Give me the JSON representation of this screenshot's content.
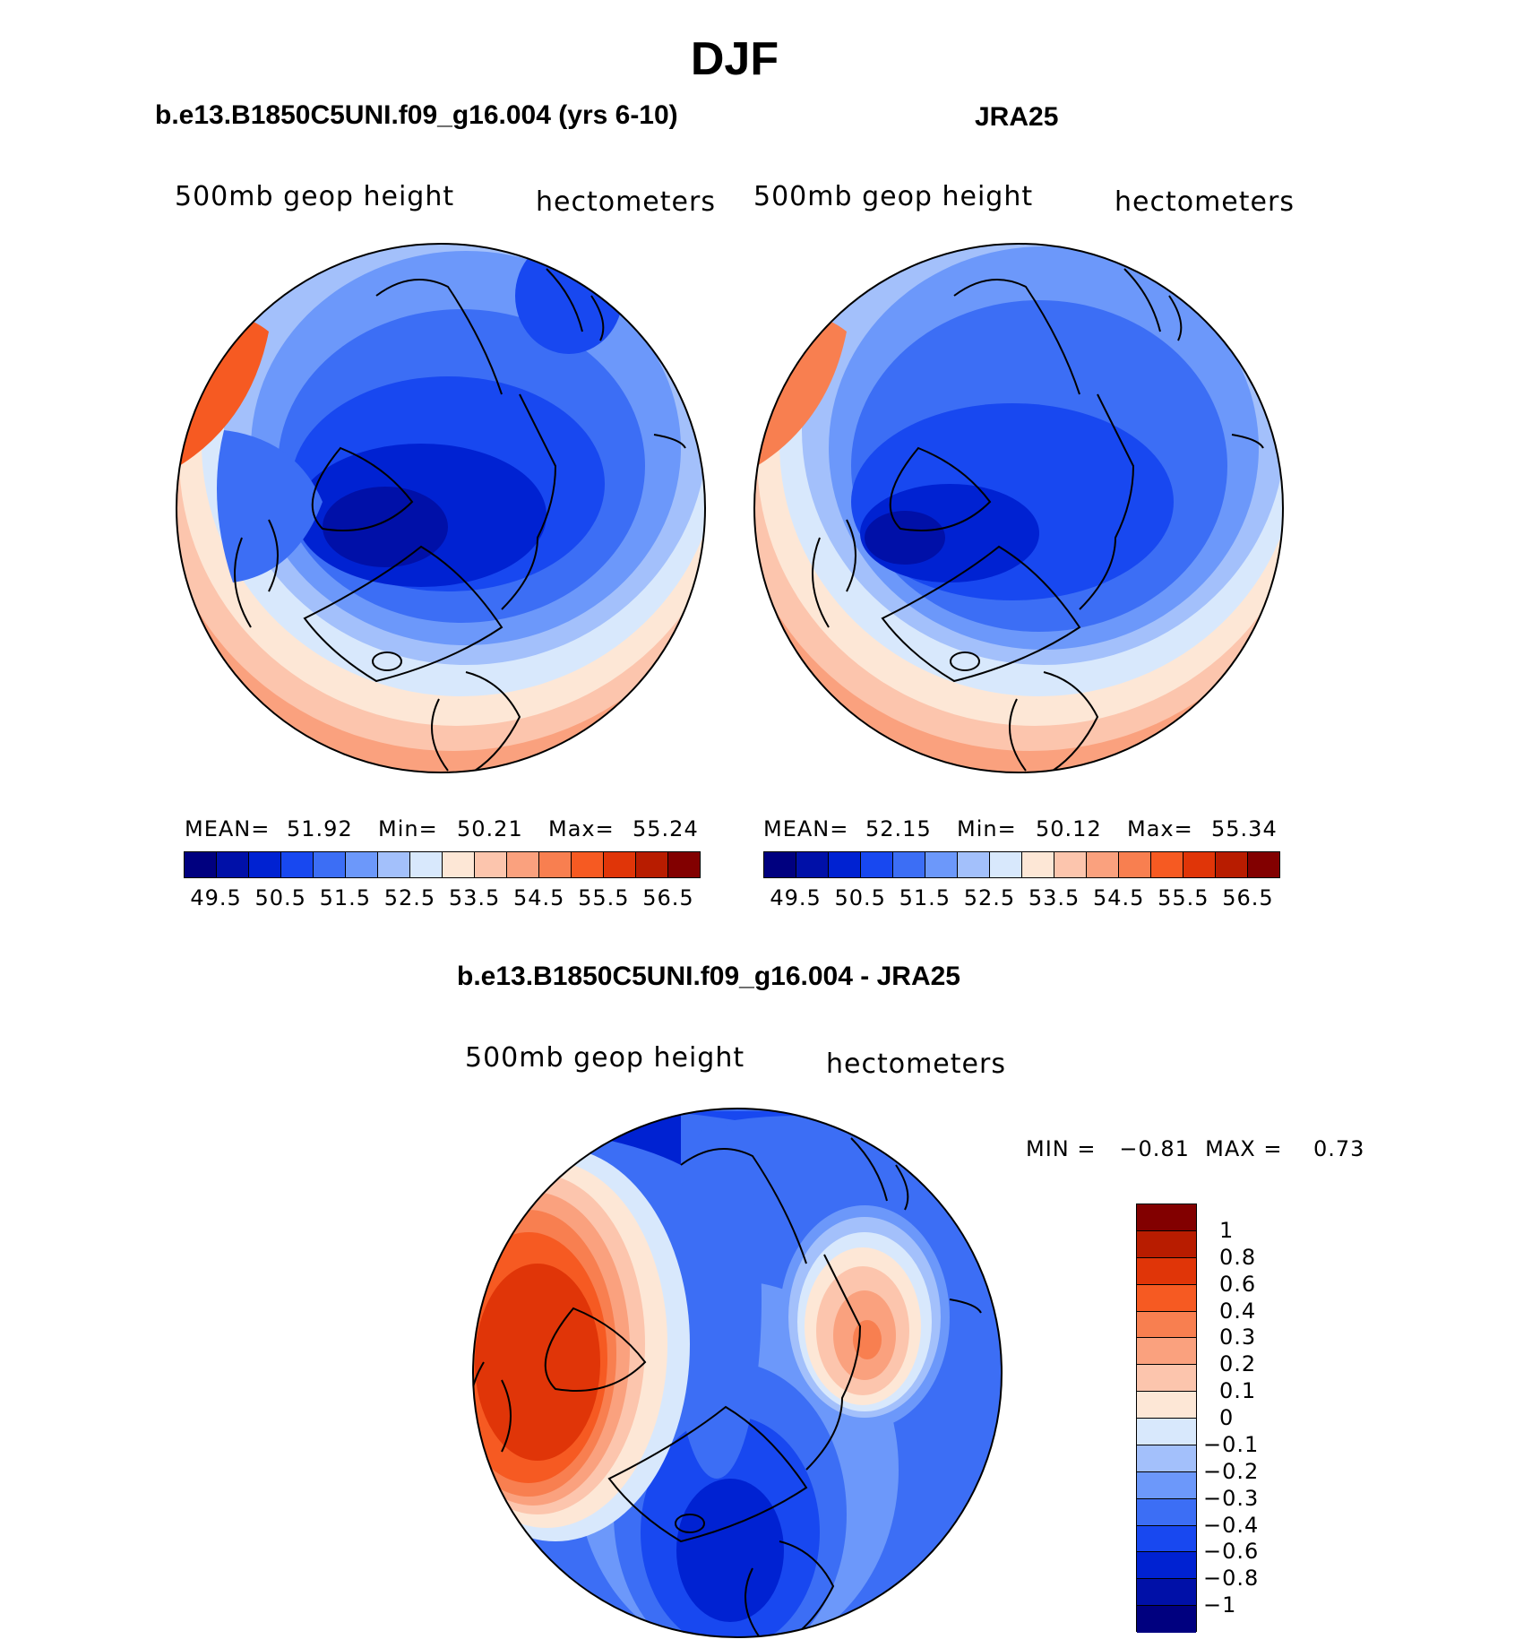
{
  "title": "DJF",
  "panels": [
    {
      "id": "model",
      "title": "b.e13.B1850C5UNI.f09_g16.004 (yrs 6-10)",
      "variable": "500mb geop height",
      "units": "hectometers",
      "stats": {
        "mean_label": "MEAN=",
        "mean": "51.92",
        "min_label": "Min=",
        "min": "50.21",
        "max_label": "Max=",
        "max": "55.24"
      }
    },
    {
      "id": "obs",
      "title": "JRA25",
      "variable": "500mb geop height",
      "units": "hectometers",
      "stats": {
        "mean_label": "MEAN=",
        "mean": "52.15",
        "min_label": "Min=",
        "min": "50.12",
        "max_label": "Max=",
        "max": "55.34"
      }
    }
  ],
  "colorbar": {
    "colors": [
      "#00007f",
      "#0010a8",
      "#0022d2",
      "#1848f0",
      "#3c6ef5",
      "#6c98fa",
      "#a3c0fb",
      "#d8e8fc",
      "#fde7d6",
      "#fcc5ad",
      "#faa17e",
      "#f87f50",
      "#f65a22",
      "#e03508",
      "#b81c00",
      "#820000"
    ],
    "ticks": [
      "49.5",
      "50.5",
      "51.5",
      "52.5",
      "53.5",
      "54.5",
      "55.5",
      "56.5"
    ]
  },
  "difference": {
    "title": "b.e13.B1850C5UNI.f09_g16.004 - JRA25",
    "variable": "500mb geop height",
    "units": "hectometers",
    "minmax_text": "MIN =   −0.81  MAX =    0.73",
    "colorbar": {
      "colors": [
        "#820000",
        "#b81c00",
        "#e03508",
        "#f65a22",
        "#f87f50",
        "#faa17e",
        "#fcc5ad",
        "#fde7d6",
        "#d8e8fc",
        "#a3c0fb",
        "#6c98fa",
        "#3c6ef5",
        "#1848f0",
        "#0022d2",
        "#0010a8",
        "#00007f"
      ],
      "ticks": [
        "1",
        "0.8",
        "0.6",
        "0.4",
        "0.3",
        "0.2",
        "0.1",
        "0",
        "−0.1",
        "−0.2",
        "−0.3",
        "−0.4",
        "−0.6",
        "−0.8",
        "−1"
      ]
    }
  }
}
